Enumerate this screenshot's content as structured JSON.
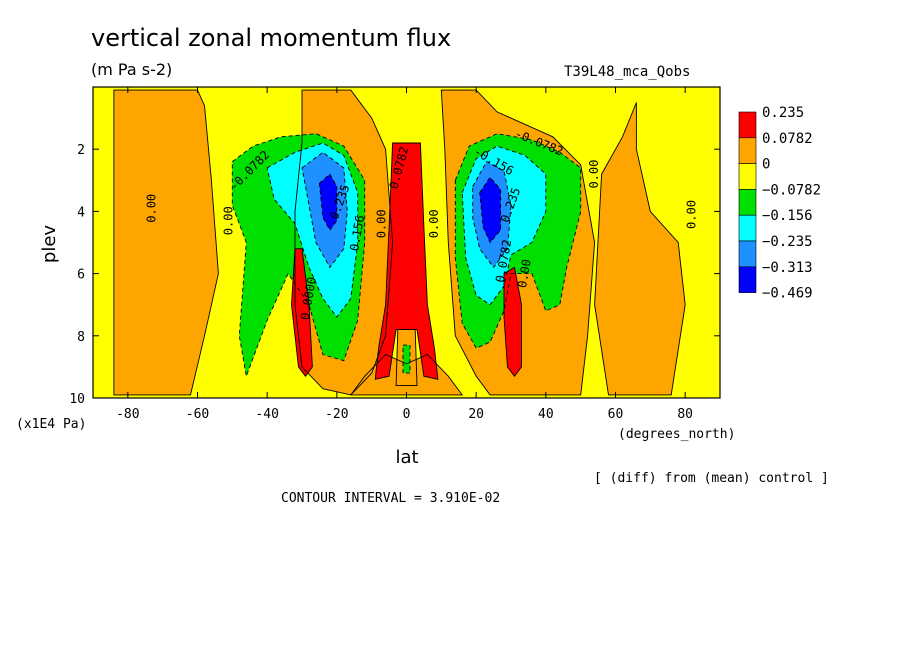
{
  "chart_data": {
    "type": "heatmap",
    "title": "vertical zonal momentum flux",
    "subtitle": "(m Pa s-2)",
    "run_label": "T39L48_mca_Qobs",
    "xlabel": "lat",
    "xunit": "(degrees_north)",
    "ylabel": "plev",
    "yunit": "(x1E4 Pa)",
    "note": "[ (diff) from (mean) control ]",
    "contour_interval": "CONTOUR INTERVAL = 3.910E-02",
    "xlim": [
      -90,
      90
    ],
    "ylim": [
      10,
      0
    ],
    "x_ticks": [
      "-80",
      "-60",
      "-40",
      "-20",
      "0",
      "20",
      "40",
      "60",
      "80"
    ],
    "x_tick_values": [
      -80,
      -60,
      -40,
      -20,
      0,
      20,
      40,
      60,
      80
    ],
    "y_ticks": [
      "2",
      "4",
      "6",
      "8",
      "10"
    ],
    "y_tick_values": [
      2,
      4,
      6,
      8,
      10
    ],
    "legend": {
      "labels": [
        "0.235",
        "0.0782",
        "0",
        "−0.0782",
        "−0.156",
        "−0.235",
        "−0.313",
        "−0.469"
      ],
      "colors": [
        "#ff0000",
        "#ffa500",
        "#ffff00",
        "#00e000",
        "#00ffff",
        "#1e90ff",
        "#0000ff"
      ]
    },
    "fills": [
      {
        "level": "0 to 0.0782",
        "color": "#ffa500",
        "poly": [
          [
            -84,
            0.1
          ],
          [
            -60,
            0.1
          ],
          [
            -58,
            0.6
          ],
          [
            -56,
            3
          ],
          [
            -54,
            6
          ],
          [
            -58,
            8
          ],
          [
            -62,
            9.9
          ],
          [
            -84,
            9.9
          ]
        ]
      },
      {
        "level": "0 to 0.0782",
        "color": "#ffa500",
        "poly": [
          [
            -30,
            0.1
          ],
          [
            -16,
            0.1
          ],
          [
            -10,
            1
          ],
          [
            -6,
            2
          ],
          [
            -4,
            5
          ],
          [
            -6,
            8
          ],
          [
            -10,
            9.2
          ],
          [
            -16,
            9.9
          ],
          [
            -24,
            9.7
          ],
          [
            -30,
            9.0
          ],
          [
            -32,
            7
          ],
          [
            -32,
            4
          ],
          [
            -30,
            1.8
          ]
        ]
      },
      {
        "level": "0 to 0.0782",
        "color": "#ffa500",
        "poly": [
          [
            -16,
            9.9
          ],
          [
            -12,
            9.3
          ],
          [
            -6,
            8.6
          ],
          [
            0,
            8.9
          ],
          [
            6,
            8.6
          ],
          [
            12,
            9.3
          ],
          [
            16,
            9.9
          ]
        ]
      },
      {
        "level": "0 to 0.0782",
        "color": "#ffa500",
        "poly": [
          [
            10,
            0.1
          ],
          [
            20,
            0.1
          ],
          [
            26,
            0.8
          ],
          [
            34,
            1.2
          ],
          [
            42,
            1.6
          ],
          [
            50,
            2.5
          ],
          [
            54,
            5
          ],
          [
            52,
            8
          ],
          [
            50,
            9.9
          ],
          [
            24,
            9.9
          ],
          [
            20,
            9.3
          ],
          [
            14,
            8
          ],
          [
            12,
            5
          ],
          [
            11,
            2
          ]
        ]
      },
      {
        "level": "0 to 0.0782",
        "color": "#ffa500",
        "poly": [
          [
            56,
            2.8
          ],
          [
            62,
            1.6
          ],
          [
            66,
            0.5
          ],
          [
            66,
            2
          ],
          [
            70,
            4
          ],
          [
            78,
            5
          ],
          [
            80,
            7
          ],
          [
            76,
            9.9
          ],
          [
            58,
            9.9
          ],
          [
            54,
            7
          ]
        ]
      },
      {
        "level": "-0.0782 to -0.156",
        "color": "#00e000",
        "poly": [
          [
            -50,
            2.4
          ],
          [
            -44,
            1.9
          ],
          [
            -36,
            1.6
          ],
          [
            -26,
            1.5
          ],
          [
            -18,
            1.9
          ],
          [
            -12,
            3
          ],
          [
            -12,
            5
          ],
          [
            -14,
            7.5
          ],
          [
            -18,
            8.8
          ],
          [
            -24,
            8.6
          ],
          [
            -28,
            7
          ],
          [
            -34,
            6
          ],
          [
            -40,
            7.5
          ],
          [
            -46,
            9.3
          ],
          [
            -48,
            8
          ],
          [
            -46,
            5
          ],
          [
            -50,
            3.8
          ]
        ]
      },
      {
        "level": "-0.156 to -0.235",
        "color": "#00ffff",
        "poly": [
          [
            -40,
            2.6
          ],
          [
            -32,
            2.1
          ],
          [
            -24,
            1.8
          ],
          [
            -18,
            2.2
          ],
          [
            -14,
            3.4
          ],
          [
            -14,
            5
          ],
          [
            -16,
            6.8
          ],
          [
            -20,
            7.4
          ],
          [
            -24,
            6.8
          ],
          [
            -28,
            5.8
          ],
          [
            -32,
            4.4
          ],
          [
            -38,
            3.6
          ]
        ]
      },
      {
        "level": "-0.235 to -0.313",
        "color": "#1e90ff",
        "poly": [
          [
            -30,
            2.6
          ],
          [
            -24,
            2.1
          ],
          [
            -18,
            2.6
          ],
          [
            -17,
            4
          ],
          [
            -18,
            5.2
          ],
          [
            -22,
            5.8
          ],
          [
            -26,
            5.0
          ],
          [
            -28,
            3.8
          ]
        ]
      },
      {
        "level": "-0.313 to -0.469",
        "color": "#0000ff",
        "poly": [
          [
            -25,
            3.1
          ],
          [
            -22,
            2.8
          ],
          [
            -20,
            3.2
          ],
          [
            -20,
            4.3
          ],
          [
            -22,
            4.6
          ],
          [
            -24,
            4.2
          ]
        ]
      },
      {
        "level": "-0.0782 to -0.156",
        "color": "#00e000",
        "poly": [
          [
            14,
            3
          ],
          [
            18,
            1.9
          ],
          [
            26,
            1.5
          ],
          [
            36,
            1.7
          ],
          [
            44,
            2.1
          ],
          [
            50,
            2.6
          ],
          [
            50,
            4
          ],
          [
            46,
            5.8
          ],
          [
            44,
            7
          ],
          [
            40,
            7.2
          ],
          [
            36,
            6
          ],
          [
            30,
            6
          ],
          [
            28,
            7.2
          ],
          [
            24,
            8.2
          ],
          [
            20,
            8.4
          ],
          [
            16,
            7.6
          ],
          [
            14,
            5.5
          ]
        ]
      },
      {
        "level": "-0.156 to -0.235",
        "color": "#00ffff",
        "poly": [
          [
            16,
            3.4
          ],
          [
            20,
            2.3
          ],
          [
            26,
            1.9
          ],
          [
            34,
            2.2
          ],
          [
            40,
            2.8
          ],
          [
            40,
            4
          ],
          [
            36,
            5
          ],
          [
            30,
            5.4
          ],
          [
            28,
            6.4
          ],
          [
            24,
            7
          ],
          [
            20,
            6.7
          ],
          [
            17,
            5.5
          ]
        ]
      },
      {
        "level": "-0.235 to -0.313",
        "color": "#1e90ff",
        "poly": [
          [
            19,
            3.2
          ],
          [
            23,
            2.4
          ],
          [
            28,
            2.7
          ],
          [
            30,
            3.8
          ],
          [
            29,
            5.2
          ],
          [
            25,
            5.8
          ],
          [
            21,
            5.2
          ],
          [
            19,
            4.2
          ]
        ]
      },
      {
        "level": "-0.313 to -0.469",
        "color": "#0000ff",
        "poly": [
          [
            21,
            3.4
          ],
          [
            24,
            2.9
          ],
          [
            27,
            3.3
          ],
          [
            27,
            4.6
          ],
          [
            24,
            5.0
          ],
          [
            22,
            4.5
          ]
        ]
      },
      {
        "level": "> 0.235",
        "color": "#ff0000",
        "poly": [
          [
            -32,
            5.2
          ],
          [
            -30,
            5.2
          ],
          [
            -28,
            7.0
          ],
          [
            -27,
            9.0
          ],
          [
            -29,
            9.3
          ],
          [
            -31,
            9.0
          ],
          [
            -33,
            7.0
          ]
        ]
      },
      {
        "level": "> 0.235",
        "color": "#ff0000",
        "poly": [
          [
            -4,
            1.8
          ],
          [
            4,
            1.8
          ],
          [
            5,
            4.5
          ],
          [
            6,
            7
          ],
          [
            8,
            8.4
          ],
          [
            9,
            9.4
          ],
          [
            5,
            9.3
          ],
          [
            3,
            7.8
          ],
          [
            -3,
            7.8
          ],
          [
            -5,
            9.3
          ],
          [
            -9,
            9.4
          ],
          [
            -8,
            8.4
          ],
          [
            -6,
            7
          ],
          [
            -5,
            4.5
          ]
        ]
      },
      {
        "level": "0.0782 to 0.235",
        "color": "#ffa500",
        "poly": [
          [
            -2.5,
            7.8
          ],
          [
            2.5,
            7.8
          ],
          [
            3,
            9.6
          ],
          [
            -3,
            9.6
          ]
        ]
      },
      {
        "level": "-0.0782 to -0.156",
        "color": "#00e000",
        "poly": [
          [
            -1,
            8.3
          ],
          [
            1,
            8.3
          ],
          [
            1,
            9.2
          ],
          [
            -1,
            9.2
          ]
        ]
      },
      {
        "level": "> 0.235",
        "color": "#ff0000",
        "poly": [
          [
            28,
            6.0
          ],
          [
            31,
            5.8
          ],
          [
            33,
            7.0
          ],
          [
            33,
            9.0
          ],
          [
            31,
            9.3
          ],
          [
            29,
            9.0
          ],
          [
            28,
            7.4
          ]
        ]
      }
    ],
    "contour_labels": [
      {
        "text": "0.00",
        "x": -73,
        "y": 3.9,
        "rot": -90
      },
      {
        "text": "0.00",
        "x": -51,
        "y": 4.3,
        "rot": -90
      },
      {
        "text": "-0.0782",
        "x": -45,
        "y": 2.7,
        "rot": -45
      },
      {
        "text": "0.0000",
        "x": -28,
        "y": 6.8,
        "rot": -80
      },
      {
        "text": "0.235",
        "x": -19,
        "y": 3.7,
        "rot": -70
      },
      {
        "text": "0.156",
        "x": -14,
        "y": 4.7,
        "rot": -80
      },
      {
        "text": "0.00",
        "x": -7,
        "y": 4.4,
        "rot": -90
      },
      {
        "text": "0.0782",
        "x": -2,
        "y": 2.6,
        "rot": -75
      },
      {
        "text": "0.00",
        "x": 8,
        "y": 4.4,
        "rot": -90
      },
      {
        "text": "-0.0782",
        "x": 38,
        "y": 1.8,
        "rot": 22
      },
      {
        "text": "-0.156",
        "x": 25,
        "y": 2.4,
        "rot": 30
      },
      {
        "text": "0.235",
        "x": 30,
        "y": 3.8,
        "rot": -70
      },
      {
        "text": "0.0782",
        "x": 28,
        "y": 5.6,
        "rot": -80
      },
      {
        "text": "0.00",
        "x": 34,
        "y": 6.0,
        "rot": -80
      },
      {
        "text": "0.00",
        "x": 54,
        "y": 2.8,
        "rot": -90
      },
      {
        "text": "0.00",
        "x": 82,
        "y": 4.1,
        "rot": -90
      }
    ]
  }
}
